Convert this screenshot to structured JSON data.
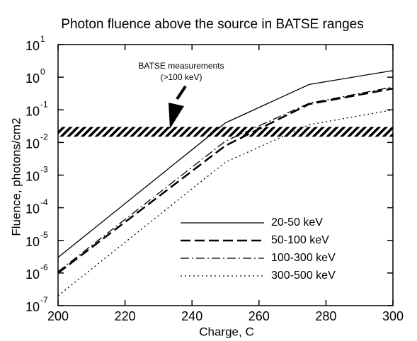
{
  "chart_data": {
    "type": "line",
    "title": "Photon fluence above the source in BATSE ranges",
    "x_label": "Charge, C",
    "y_label": "Fluence, photons/cm2",
    "log_y": true,
    "xlim": [
      200,
      300
    ],
    "xticks": [
      200,
      220,
      240,
      260,
      280,
      300
    ],
    "ylim": [
      1e-07,
      10
    ],
    "yticks": [
      {
        "value": 1e-07,
        "label": "10",
        "exp": "-7"
      },
      {
        "value": 1e-06,
        "label": "10",
        "exp": "-6"
      },
      {
        "value": 1e-05,
        "label": "10",
        "exp": "-5"
      },
      {
        "value": 0.0001,
        "label": "10",
        "exp": "-4"
      },
      {
        "value": 0.001,
        "label": "10",
        "exp": "-3"
      },
      {
        "value": 0.01,
        "label": "10",
        "exp": "-2"
      },
      {
        "value": 0.1,
        "label": "10",
        "exp": "-1"
      },
      {
        "value": 1,
        "label": "10",
        "exp": "0"
      },
      {
        "value": 10,
        "label": "10",
        "exp": "1"
      }
    ],
    "x": [
      200,
      250,
      275,
      300
    ],
    "series": [
      {
        "name": "20-50 keV",
        "color": "#000000",
        "dash": "solid",
        "values": [
          3e-06,
          0.04,
          0.6,
          1.6
        ]
      },
      {
        "name": "50-100 keV",
        "color": "#000000",
        "dash": "dashed",
        "values": [
          1e-06,
          0.008,
          0.15,
          0.45
        ]
      },
      {
        "name": "100-300 keV",
        "color": "#000000",
        "dash": "dashdot",
        "values": [
          1.1e-06,
          0.011,
          0.16,
          0.5
        ]
      },
      {
        "name": "300-500 keV",
        "color": "#000000",
        "dash": "dotted",
        "values": [
          2e-07,
          0.0025,
          0.035,
          0.1
        ]
      }
    ],
    "band": [
      0.015,
      0.03
    ],
    "annotation": [
      "BATSE measurements",
      "(>100 keV)"
    ],
    "legend": "lower right",
    "grid": false
  }
}
